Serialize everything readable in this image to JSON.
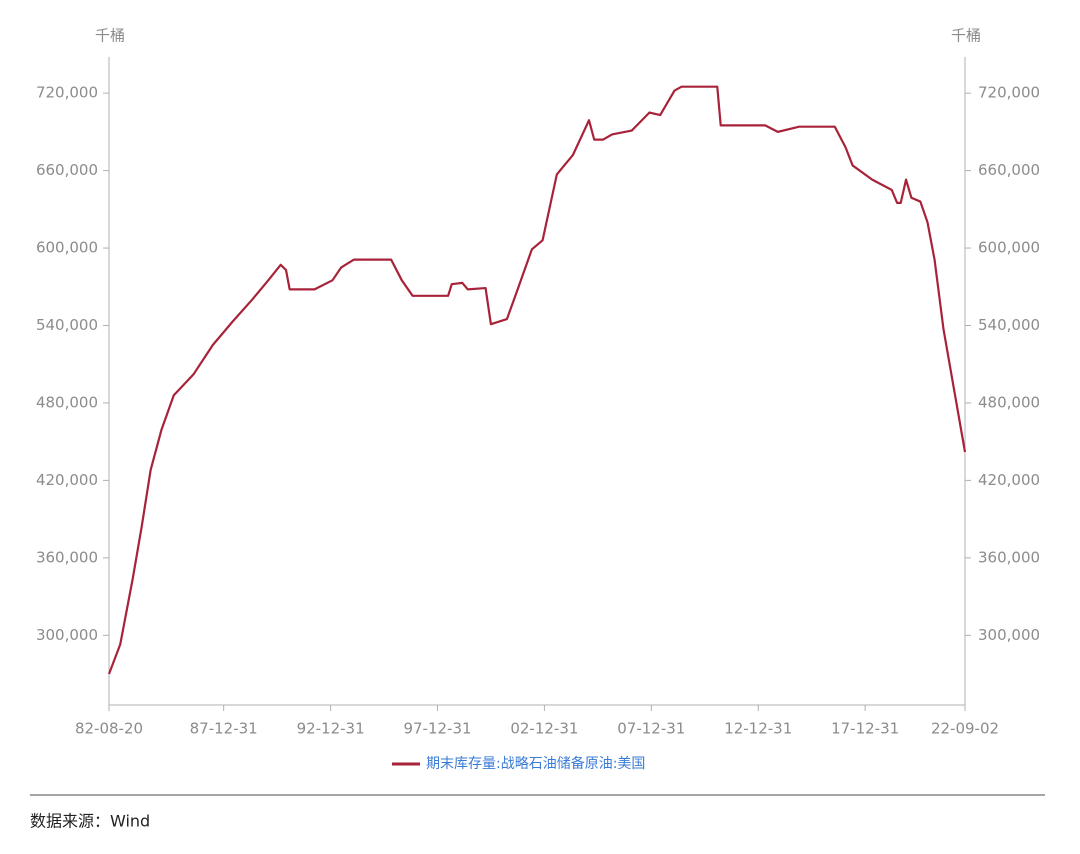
{
  "chart_data": {
    "type": "line",
    "y_label": "千桶",
    "y2_label": "千桶",
    "x": [
      "82-08-20",
      "83-02-28",
      "83-09-30",
      "84-02-29",
      "84-07-31",
      "85-01-31",
      "85-08-31",
      "86-07-31",
      "87-06-30",
      "88-05-31",
      "89-04-30",
      "90-01-31",
      "90-08-31",
      "90-11-30",
      "91-01-31",
      "92-03-31",
      "93-01-31",
      "93-06-30",
      "94-01-31",
      "95-10-31",
      "96-04-30",
      "96-10-31",
      "98-06-30",
      "98-08-31",
      "99-02-28",
      "99-05-31",
      "00-03-31",
      "00-06-30",
      "01-03-31",
      "01-09-30",
      "02-05-31",
      "02-11-30",
      "03-07-31",
      "04-04-30",
      "05-01-31",
      "05-04-30",
      "05-09-30",
      "06-02-28",
      "07-01-31",
      "07-11-30",
      "08-05-31",
      "09-01-31",
      "09-05-31",
      "11-01-31",
      "11-03-31",
      "13-04-30",
      "13-11-30",
      "14-11-30",
      "16-07-31",
      "17-01-31",
      "17-05-31",
      "18-04-30",
      "19-03-31",
      "19-06-30",
      "19-08-31",
      "19-11-30",
      "20-02-29",
      "20-07-31",
      "20-11-30",
      "21-03-31",
      "21-08-31",
      "22-09-02"
    ],
    "series": [
      {
        "name": "期末库存量:战略石油储备原油:美国",
        "color": "#a8233a",
        "values": [
          270000,
          293000,
          344000,
          384000,
          428000,
          459000,
          486000,
          502000,
          525000,
          543000,
          560000,
          575000,
          587000,
          583000,
          568000,
          568000,
          575000,
          585000,
          591000,
          591000,
          575000,
          563000,
          563000,
          572000,
          573000,
          568000,
          569000,
          541000,
          545000,
          568000,
          599000,
          606000,
          657000,
          672000,
          699000,
          684000,
          684000,
          688000,
          691000,
          705000,
          703000,
          722000,
          725000,
          725000,
          695000,
          695000,
          690000,
          694000,
          694000,
          678000,
          664000,
          653000,
          645000,
          635000,
          635000,
          653000,
          639000,
          636000,
          620000,
          591000,
          537000,
          442000
        ]
      }
    ],
    "xlim": [
      "82-08-20",
      "22-09-02"
    ],
    "xticks": [
      "82-08-20",
      "87-12-31",
      "92-12-31",
      "97-12-31",
      "02-12-31",
      "07-12-31",
      "12-12-31",
      "17-12-31",
      "22-09-02"
    ],
    "ylim": [
      246000,
      748000
    ],
    "yticks": [
      {
        "value": 300000,
        "label": "300,000"
      },
      {
        "value": 360000,
        "label": "360,000"
      },
      {
        "value": 420000,
        "label": "420,000"
      },
      {
        "value": 480000,
        "label": "480,000"
      },
      {
        "value": 540000,
        "label": "540,000"
      },
      {
        "value": 600000,
        "label": "600,000"
      },
      {
        "value": 660000,
        "label": "660,000"
      },
      {
        "value": 720000,
        "label": "720,000"
      }
    ],
    "y2lim": [
      246000,
      748000
    ],
    "y2ticks": [
      {
        "value": 300000,
        "label": "300,000"
      },
      {
        "value": 360000,
        "label": "360,000"
      },
      {
        "value": 420000,
        "label": "420,000"
      },
      {
        "value": 480000,
        "label": "480,000"
      },
      {
        "value": 540000,
        "label": "540,000"
      },
      {
        "value": 600000,
        "label": "600,000"
      },
      {
        "value": 660000,
        "label": "660,000"
      },
      {
        "value": 720000,
        "label": "720,000"
      }
    ]
  },
  "source": "数据来源：Wind"
}
